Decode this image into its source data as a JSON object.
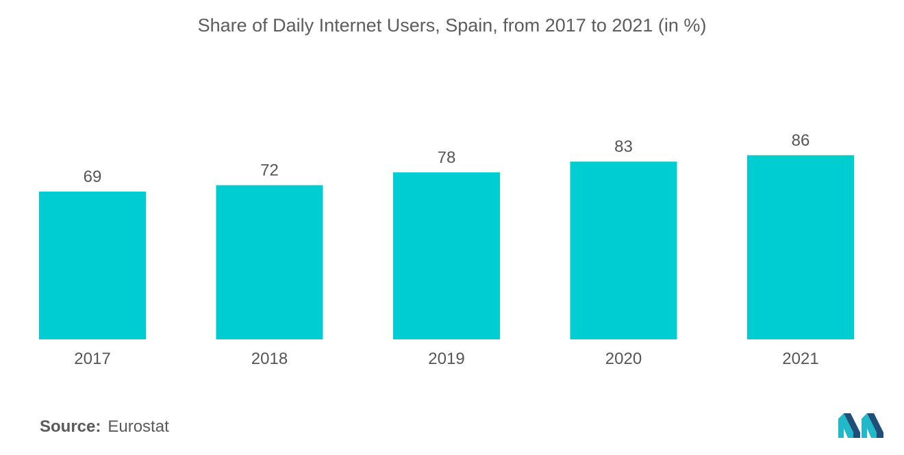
{
  "chart_data": {
    "type": "bar",
    "title": "Share of Daily Internet Users, Spain, from 2017 to 2021 (in %)",
    "categories": [
      "2017",
      "2018",
      "2019",
      "2020",
      "2021"
    ],
    "values": [
      69,
      72,
      78,
      83,
      86
    ],
    "xlabel": "",
    "ylabel": "",
    "ylim": [
      0,
      100
    ],
    "grid": false,
    "data_labels": true,
    "bar_color": "#00CDD1"
  },
  "source": {
    "label": "Source:",
    "value": "Eurostat"
  },
  "colors": {
    "bar": "#00CDD1",
    "logo_dark": "#1F4E79",
    "logo_light": "#21B8C9"
  }
}
